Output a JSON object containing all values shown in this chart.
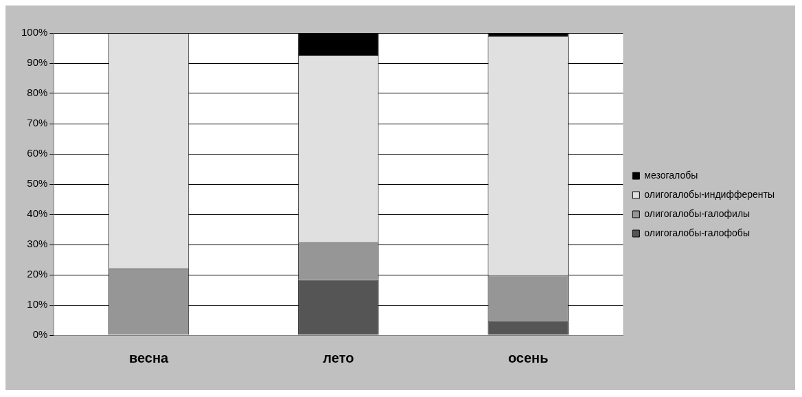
{
  "chart_data": {
    "type": "bar",
    "stacked": true,
    "categories": [
      "весна",
      "лето",
      "осень"
    ],
    "series": [
      {
        "name": "олигогалобы-галофобы",
        "color": "#555555",
        "values": [
          0,
          18.3,
          4.6
        ]
      },
      {
        "name": "олигогалобы-галофилы",
        "color": "#969696",
        "values": [
          22.1,
          12.5,
          15.1
        ]
      },
      {
        "name": "олигогалобы-индифференты",
        "color": "#e0e0e0",
        "values": [
          77.9,
          61.9,
          79.2
        ]
      },
      {
        "name": "мезогалобы",
        "color": "#000000",
        "values": [
          0,
          7.3,
          1.1
        ]
      }
    ],
    "ylim": [
      0,
      100
    ],
    "yticks": [
      {
        "value": 0,
        "label": "0%"
      },
      {
        "value": 10,
        "label": "10%"
      },
      {
        "value": 20,
        "label": "20%"
      },
      {
        "value": 30,
        "label": "30%"
      },
      {
        "value": 40,
        "label": "40%"
      },
      {
        "value": 50,
        "label": "50%"
      },
      {
        "value": 60,
        "label": "60%"
      },
      {
        "value": 70,
        "label": "70%"
      },
      {
        "value": 80,
        "label": "80%"
      },
      {
        "value": 90,
        "label": "90%"
      },
      {
        "value": 100,
        "label": "100%"
      }
    ],
    "grid": "y",
    "legend": "right"
  }
}
